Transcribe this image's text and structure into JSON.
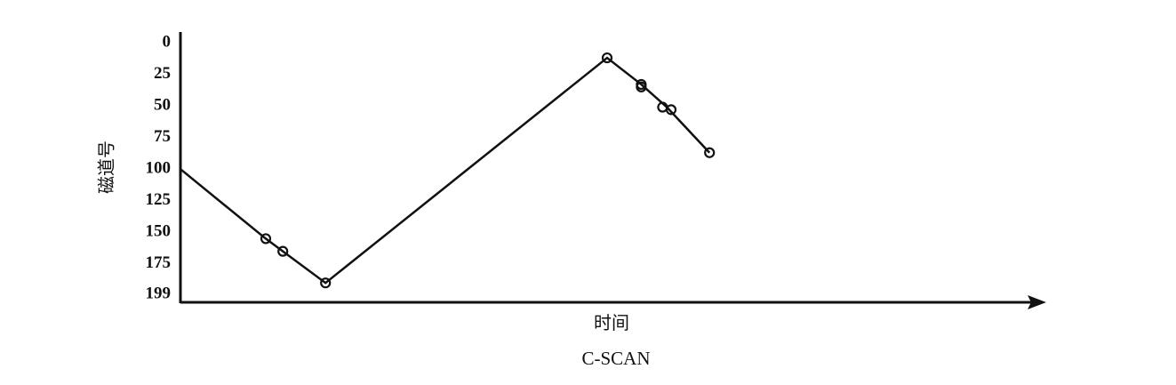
{
  "chart_data": {
    "type": "line",
    "title": "C-SCAN",
    "xlabel": "时间",
    "ylabel": "磁道号",
    "y_ticks": [
      "0",
      "25",
      "50",
      "75",
      "100",
      "125",
      "150",
      "175",
      "199"
    ],
    "ylim": [
      0,
      199
    ],
    "y_inverted": true,
    "x_axis_arrow": true,
    "grid": false,
    "series": [
      {
        "line_points": [
          {
            "x": 0,
            "y": 100
          },
          {
            "x": 1,
            "y": 155
          },
          {
            "x": 1.2,
            "y": 165
          },
          {
            "x": 1.7,
            "y": 190
          },
          {
            "x": 5,
            "y": 12
          },
          {
            "x": 5.4,
            "y": 33
          },
          {
            "x": 5.7,
            "y": 51
          },
          {
            "x": 6.2,
            "y": 87
          }
        ],
        "markers": [
          {
            "x": 1,
            "y": 155
          },
          {
            "x": 1.2,
            "y": 165
          },
          {
            "x": 1.7,
            "y": 190
          },
          {
            "x": 5,
            "y": 12
          },
          {
            "x": 5.4,
            "y": 33
          },
          {
            "x": 5.4,
            "y": 35
          },
          {
            "x": 5.65,
            "y": 51
          },
          {
            "x": 5.75,
            "y": 53
          },
          {
            "x": 6.2,
            "y": 87
          }
        ]
      }
    ],
    "colors": {
      "line": "#111111",
      "axis": "#111111",
      "background": "#ffffff"
    }
  }
}
